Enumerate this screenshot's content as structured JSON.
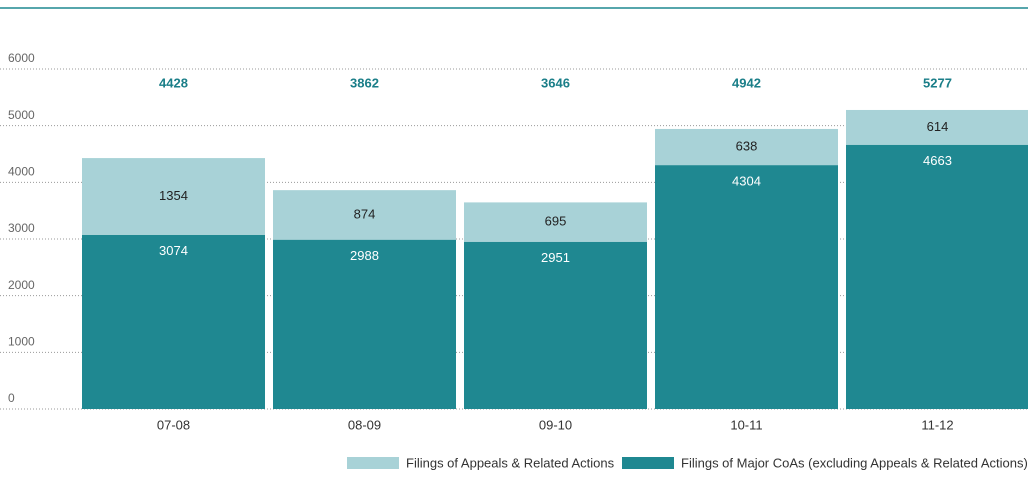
{
  "chart_data": {
    "type": "stacked_bar",
    "categories": [
      "07-08",
      "08-09",
      "09-10",
      "10-11",
      "11-12"
    ],
    "series": [
      {
        "name": "Filings of Major CoAs (excluding Appeals & Related Actions)",
        "color": "#1f8891",
        "values": [
          3074,
          2988,
          2951,
          4304,
          4663
        ]
      },
      {
        "name": "Filings of Appeals & Related Actions",
        "color": "#a8d2d7",
        "values": [
          1354,
          874,
          695,
          638,
          614
        ]
      }
    ],
    "totals": [
      4428,
      3862,
      3646,
      4942,
      5277
    ],
    "total_color": "#1a7e88",
    "ylim": [
      0,
      6000
    ],
    "yticks": [
      0,
      1000,
      2000,
      3000,
      4000,
      5000,
      6000
    ],
    "grid": true
  }
}
